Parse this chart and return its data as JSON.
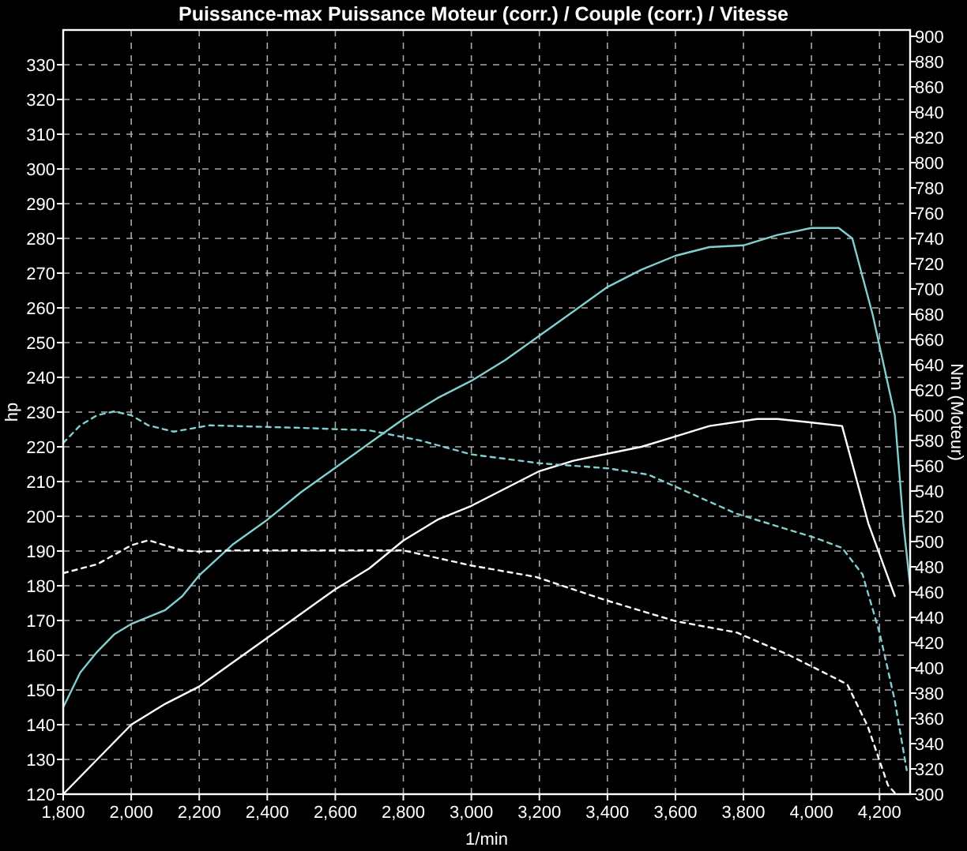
{
  "chart_data": {
    "type": "line",
    "title": "Puissance-max Puissance Moteur (corr.) / Couple (corr.) / Vitesse",
    "xlabel": "1/min",
    "ylabel": "hp",
    "y2label": "Nm (Moteur)",
    "xlim": [
      1800,
      4290
    ],
    "xticks": [
      {
        "value": 1800,
        "label": "1,800"
      },
      {
        "value": 2000,
        "label": "2,000"
      },
      {
        "value": 2200,
        "label": "2,200"
      },
      {
        "value": 2400,
        "label": "2,400"
      },
      {
        "value": 2600,
        "label": "2,600"
      },
      {
        "value": 2800,
        "label": "2,800"
      },
      {
        "value": 3000,
        "label": "3,000"
      },
      {
        "value": 3200,
        "label": "3,200"
      },
      {
        "value": 3400,
        "label": "3,400"
      },
      {
        "value": 3600,
        "label": "3,600"
      },
      {
        "value": 3800,
        "label": "3,800"
      },
      {
        "value": 4000,
        "label": "4,000"
      },
      {
        "value": 4200,
        "label": "4,200"
      }
    ],
    "ylim": [
      120,
      340
    ],
    "yticks": [
      120,
      130,
      140,
      150,
      160,
      170,
      180,
      190,
      200,
      210,
      220,
      230,
      240,
      250,
      260,
      270,
      280,
      290,
      300,
      310,
      320,
      330
    ],
    "y2lim": [
      300,
      905
    ],
    "y2ticks": [
      300,
      320,
      340,
      360,
      380,
      400,
      420,
      440,
      460,
      480,
      500,
      520,
      540,
      560,
      580,
      600,
      620,
      640,
      660,
      680,
      700,
      720,
      740,
      760,
      780,
      800,
      820,
      840,
      860,
      880,
      900
    ],
    "grid": true,
    "marker": "none",
    "series": [
      {
        "color": "#80d0d0",
        "line_style": "solid",
        "x": [
          1800,
          1850,
          1900,
          1950,
          2000,
          2050,
          2100,
          2150,
          2200,
          2300,
          2400,
          2500,
          2600,
          2700,
          2800,
          2900,
          3000,
          3100,
          3200,
          3300,
          3400,
          3500,
          3600,
          3700,
          3800,
          3900,
          4000,
          4080,
          4120,
          4180,
          4245,
          4270,
          4290
        ],
        "values": [
          145,
          155,
          161,
          166,
          169,
          171,
          173,
          177,
          183,
          192,
          199,
          207,
          214,
          221,
          228,
          234,
          239,
          245,
          252,
          259,
          266,
          271,
          275,
          277.5,
          278,
          281,
          283,
          283,
          280,
          258,
          229,
          198,
          180
        ]
      },
      {
        "color": "#ffffff",
        "line_style": "solid",
        "x": [
          1800,
          1900,
          2000,
          2100,
          2200,
          2300,
          2400,
          2500,
          2600,
          2700,
          2800,
          2900,
          3000,
          3100,
          3200,
          3300,
          3400,
          3500,
          3600,
          3700,
          3840,
          3900,
          4000,
          4090,
          4167,
          4245
        ],
        "values": [
          120,
          130,
          140,
          146,
          151,
          158,
          165,
          172,
          179,
          185,
          193,
          199,
          203,
          208,
          213,
          216,
          218,
          220,
          223,
          226,
          228,
          228,
          227,
          226,
          198,
          177
        ]
      },
      {
        "color": "#80d0d0",
        "line_style": "dashed",
        "axis": "y2",
        "x": [
          1800,
          1850,
          1900,
          1950,
          2000,
          2050,
          2125,
          2230,
          2500,
          2700,
          2850,
          3000,
          3200,
          3400,
          3520,
          3780,
          4010,
          4090,
          4150,
          4200,
          4245,
          4280
        ],
        "values": [
          578,
          592,
          600,
          603,
          600,
          592,
          587,
          592,
          590,
          588,
          580,
          569,
          562,
          558,
          553,
          522,
          503,
          495,
          474,
          428,
          374,
          319
        ]
      },
      {
        "color": "#ffffff",
        "line_style": "dashed",
        "axis": "y2",
        "x": [
          1800,
          1900,
          2000,
          2050,
          2150,
          2200,
          2300,
          2500,
          2800,
          2900,
          3000,
          3190,
          3390,
          3600,
          3780,
          3935,
          4105,
          4165,
          4225,
          4245
        ],
        "values": [
          475,
          482,
          497,
          501,
          493,
          492,
          493,
          493,
          493,
          487,
          481,
          472,
          454,
          437,
          428,
          410,
          387,
          354,
          307,
          301
        ]
      }
    ]
  }
}
